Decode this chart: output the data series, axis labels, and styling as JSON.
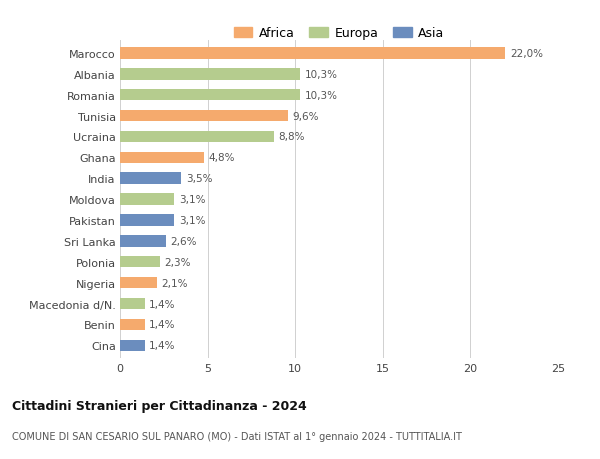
{
  "categories": [
    "Marocco",
    "Albania",
    "Romania",
    "Tunisia",
    "Ucraina",
    "Ghana",
    "India",
    "Moldova",
    "Pakistan",
    "Sri Lanka",
    "Polonia",
    "Nigeria",
    "Macedonia d/N.",
    "Benin",
    "Cina"
  ],
  "values": [
    22.0,
    10.3,
    10.3,
    9.6,
    8.8,
    4.8,
    3.5,
    3.1,
    3.1,
    2.6,
    2.3,
    2.1,
    1.4,
    1.4,
    1.4
  ],
  "labels": [
    "22,0%",
    "10,3%",
    "10,3%",
    "9,6%",
    "8,8%",
    "4,8%",
    "3,5%",
    "3,1%",
    "3,1%",
    "2,6%",
    "2,3%",
    "2,1%",
    "1,4%",
    "1,4%",
    "1,4%"
  ],
  "continents": [
    "Africa",
    "Europa",
    "Europa",
    "Africa",
    "Europa",
    "Africa",
    "Asia",
    "Europa",
    "Asia",
    "Asia",
    "Europa",
    "Africa",
    "Europa",
    "Africa",
    "Asia"
  ],
  "colors": {
    "Africa": "#F5AA6D",
    "Europa": "#B5CC8E",
    "Asia": "#6B8DBE"
  },
  "legend_order": [
    "Africa",
    "Europa",
    "Asia"
  ],
  "xlim": [
    0,
    25
  ],
  "xticks": [
    0,
    5,
    10,
    15,
    20,
    25
  ],
  "title": "Cittadini Stranieri per Cittadinanza - 2024",
  "subtitle": "COMUNE DI SAN CESARIO SUL PANARO (MO) - Dati ISTAT al 1° gennaio 2024 - TUTTITALIA.IT",
  "background_color": "#ffffff",
  "grid_color": "#d0d0d0"
}
